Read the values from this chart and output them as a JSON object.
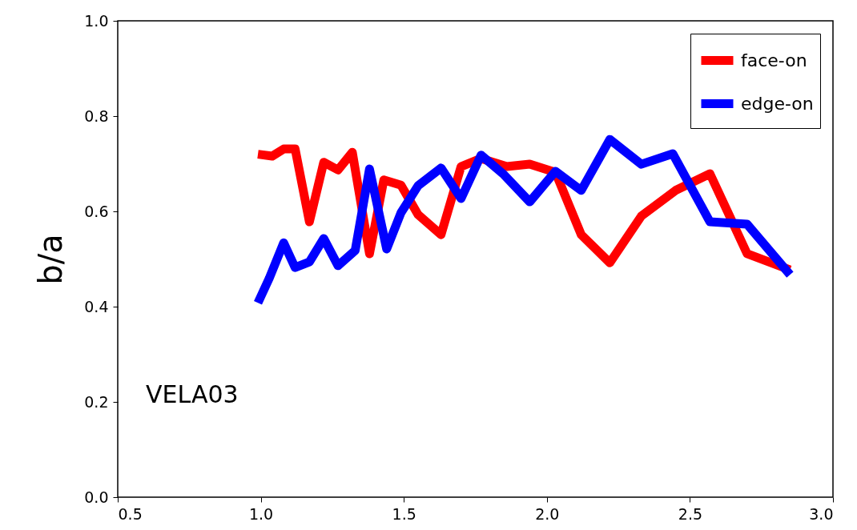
{
  "chart_data": {
    "type": "line",
    "ylabel": "b/a",
    "annotations": [
      "VELA03"
    ],
    "xlim": [
      0.5,
      3.0
    ],
    "ylim": [
      0.0,
      1.0
    ],
    "xticks": [
      {
        "value": 0.5,
        "label": "0.5"
      },
      {
        "value": 1.0,
        "label": "1.0"
      },
      {
        "value": 1.5,
        "label": "1.5"
      },
      {
        "value": 2.0,
        "label": "2.0"
      },
      {
        "value": 2.5,
        "label": "2.5"
      },
      {
        "value": 3.0,
        "label": "3.0"
      }
    ],
    "yticks": [
      {
        "value": 0.0,
        "label": "0.0"
      },
      {
        "value": 0.2,
        "label": "0.2"
      },
      {
        "value": 0.4,
        "label": "0.4"
      },
      {
        "value": 0.6,
        "label": "0.6"
      },
      {
        "value": 0.8,
        "label": "0.8"
      },
      {
        "value": 1.0,
        "label": "1.0"
      }
    ],
    "grid": false,
    "legend": "top right",
    "line_style": "solid",
    "series": [
      {
        "name": "face-on",
        "color": "#ff0000",
        "x": [
          0.99,
          1.04,
          1.08,
          1.12,
          1.17,
          1.22,
          1.27,
          1.32,
          1.38,
          1.43,
          1.49,
          1.55,
          1.63,
          1.7,
          1.77,
          1.86,
          1.94,
          2.03,
          2.12,
          2.22,
          2.33,
          2.45,
          2.57,
          2.7,
          2.85
        ],
        "values": [
          0.72,
          0.716,
          0.731,
          0.731,
          0.578,
          0.703,
          0.687,
          0.724,
          0.511,
          0.666,
          0.655,
          0.593,
          0.551,
          0.694,
          0.711,
          0.694,
          0.699,
          0.682,
          0.551,
          0.492,
          0.59,
          0.644,
          0.679,
          0.511,
          0.477
        ]
      },
      {
        "name": "edge-on",
        "color": "#0000ff",
        "x": [
          0.99,
          1.03,
          1.08,
          1.12,
          1.17,
          1.22,
          1.27,
          1.33,
          1.38,
          1.44,
          1.49,
          1.55,
          1.63,
          1.7,
          1.77,
          1.85,
          1.94,
          2.03,
          2.12,
          2.22,
          2.33,
          2.44,
          2.57,
          2.7,
          2.85
        ],
        "values": [
          0.408,
          0.46,
          0.534,
          0.482,
          0.494,
          0.543,
          0.486,
          0.518,
          0.689,
          0.521,
          0.597,
          0.654,
          0.691,
          0.627,
          0.718,
          0.677,
          0.62,
          0.684,
          0.644,
          0.751,
          0.699,
          0.721,
          0.578,
          0.573,
          0.467
        ]
      }
    ]
  }
}
